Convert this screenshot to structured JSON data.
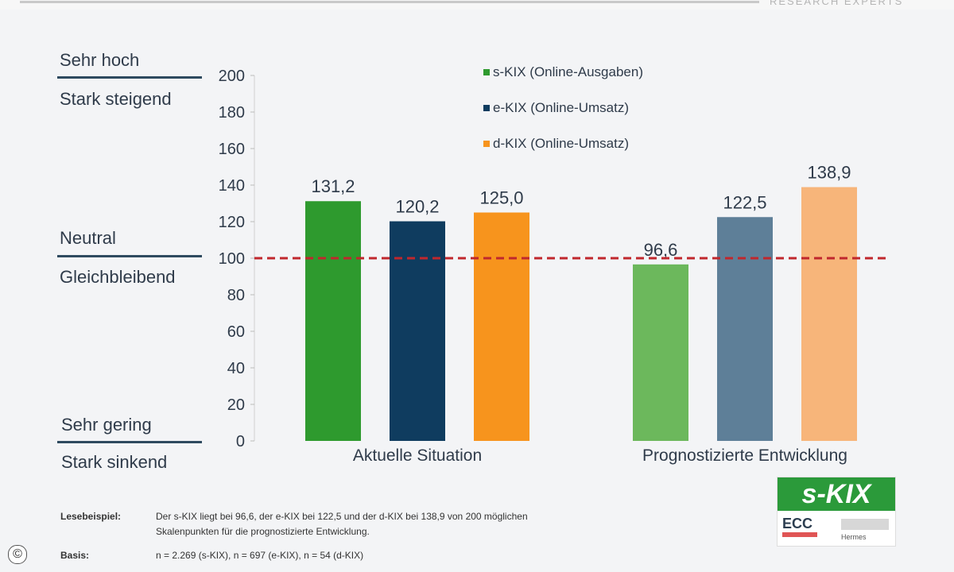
{
  "header": {
    "brand_text": "RESEARCH EXPERTS"
  },
  "left_scale": {
    "top_upper": "Sehr hoch",
    "top_lower": "Stark steigend",
    "mid_upper": "Neutral",
    "mid_lower": "Gleichbleibend",
    "bottom_upper": "Sehr gering",
    "bottom_lower": "Stark sinkend"
  },
  "chart_data": {
    "type": "bar",
    "title": "",
    "xlabel": "",
    "ylabel": "",
    "ylim": [
      0,
      200
    ],
    "yticks": [
      0,
      20,
      40,
      60,
      80,
      100,
      120,
      140,
      160,
      180,
      200
    ],
    "grid": false,
    "legend_position": "top-center",
    "reference_line": {
      "value": 100,
      "color": "#c0272d",
      "style": "dashed"
    },
    "categories": [
      "Aktuelle Situation",
      "Prognostizierte Entwicklung"
    ],
    "series": [
      {
        "name": "s-KIX (Online-Ausgaben)",
        "values": [
          131.2,
          96.6
        ],
        "labels": [
          "131,2",
          "96,6"
        ],
        "colors": [
          "#2e9a2e",
          "#6cb85c"
        ]
      },
      {
        "name": "e-KIX (Online-Umsatz)",
        "values": [
          120.2,
          122.5
        ],
        "labels": [
          "120,2",
          "122,5"
        ],
        "colors": [
          "#0f3c5f",
          "#5e7f98"
        ]
      },
      {
        "name": "d-KIX (Online-Umsatz)",
        "values": [
          125.0,
          138.9
        ],
        "labels": [
          "125,0",
          "138,9"
        ],
        "colors": [
          "#f7941d",
          "#f7b57a"
        ]
      }
    ],
    "legend_colors": [
      "#2e9a2e",
      "#0f3c5f",
      "#f7941d"
    ]
  },
  "footer": {
    "reading_label": "Lesebeispiel:",
    "reading_text_1": "Der s-KIX liegt bei 96,6, der e-KIX bei 122,5 und der d-KIX bei 138,9 von 200 möglichen",
    "reading_text_2": "Skalenpunkten  für die prognostizierte Entwicklung.",
    "basis_label": "Basis:",
    "basis_text": "n = 2.269  (s-KIX),  n = 697  (e-KIX),  n = 54  (d-KIX)"
  },
  "logo": {
    "title": "s-KIX",
    "ecc": "ECC",
    "partner": "Hermes"
  },
  "copyright_symbol": "©"
}
